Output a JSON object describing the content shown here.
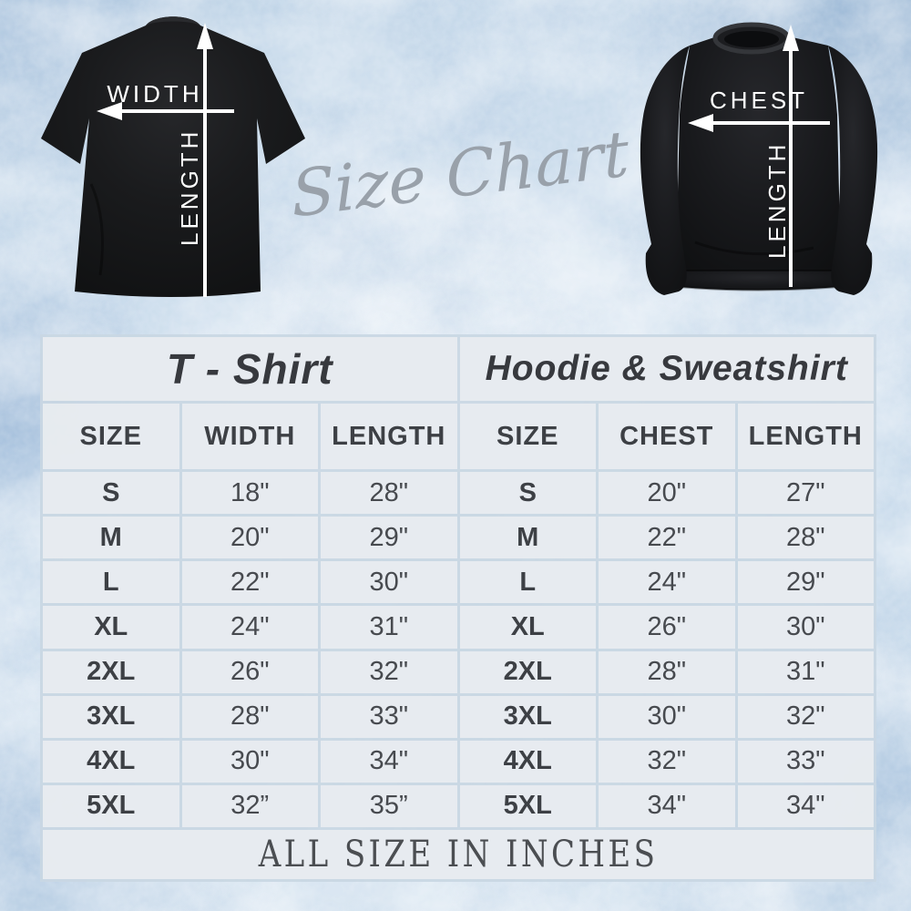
{
  "page": {
    "title": "Size Chart"
  },
  "heading": {
    "script_text": "Size Chart"
  },
  "garments": {
    "tshirt": {
      "width_label": "WIDTH",
      "length_label": "LENGTH"
    },
    "sweatshirt": {
      "chest_label": "CHEST",
      "length_label": "LENGTH"
    }
  },
  "size_table": {
    "left": {
      "title": "T - Shirt",
      "columns": [
        "SIZE",
        "WIDTH",
        "LENGTH"
      ],
      "rows": [
        [
          "S",
          "18\"",
          "28\""
        ],
        [
          "M",
          "20\"",
          "29\""
        ],
        [
          "L",
          "22\"",
          "30\""
        ],
        [
          "XL",
          "24\"",
          "31\""
        ],
        [
          "2XL",
          "26\"",
          "32\""
        ],
        [
          "3XL",
          "28\"",
          "33\""
        ],
        [
          "4XL",
          "30\"",
          "34\""
        ],
        [
          "5XL",
          "32”",
          "35”"
        ]
      ]
    },
    "right": {
      "title": "Hoodie & Sweatshirt",
      "columns": [
        "SIZE",
        "CHEST",
        "LENGTH"
      ],
      "rows": [
        [
          "S",
          "20\"",
          "27\""
        ],
        [
          "M",
          "22\"",
          "28\""
        ],
        [
          "L",
          "24\"",
          "29\""
        ],
        [
          "XL",
          "26\"",
          "30\""
        ],
        [
          "2XL",
          "28\"",
          "31\""
        ],
        [
          "3XL",
          "30\"",
          "32\""
        ],
        [
          "4XL",
          "32\"",
          "33\""
        ],
        [
          "5XL",
          "34\"",
          "34\""
        ]
      ]
    },
    "footer": "ALL SIZE IN INCHES"
  },
  "colors": {
    "background_ice_blue": "#cfdfee",
    "background_deep_blue": "#8fb3d4",
    "table_line": "#c9d7e3",
    "cell_background": "#e7ebf0",
    "text_dark": "#3c3f44",
    "script_gray": "#99a1aa",
    "garment_black": "#141517",
    "arrow_white": "#ffffff"
  },
  "chart_data": {
    "type": "table",
    "title": "Size Chart",
    "note": "ALL SIZE IN INCHES",
    "tables": [
      {
        "name": "T - Shirt",
        "columns": [
          "SIZE",
          "WIDTH",
          "LENGTH"
        ],
        "rows": [
          [
            "S",
            "18\"",
            "28\""
          ],
          [
            "M",
            "20\"",
            "29\""
          ],
          [
            "L",
            "22\"",
            "30\""
          ],
          [
            "XL",
            "24\"",
            "31\""
          ],
          [
            "2XL",
            "26\"",
            "32\""
          ],
          [
            "3XL",
            "28\"",
            "33\""
          ],
          [
            "4XL",
            "30\"",
            "34\""
          ],
          [
            "5XL",
            "32”",
            "35”"
          ]
        ]
      },
      {
        "name": "Hoodie & Sweatshirt",
        "columns": [
          "SIZE",
          "CHEST",
          "LENGTH"
        ],
        "rows": [
          [
            "S",
            "20\"",
            "27\""
          ],
          [
            "M",
            "22\"",
            "28\""
          ],
          [
            "L",
            "24\"",
            "29\""
          ],
          [
            "XL",
            "26\"",
            "30\""
          ],
          [
            "2XL",
            "28\"",
            "31\""
          ],
          [
            "3XL",
            "30\"",
            "32\""
          ],
          [
            "4XL",
            "32\"",
            "33\""
          ],
          [
            "5XL",
            "34\"",
            "34\""
          ]
        ]
      }
    ]
  }
}
